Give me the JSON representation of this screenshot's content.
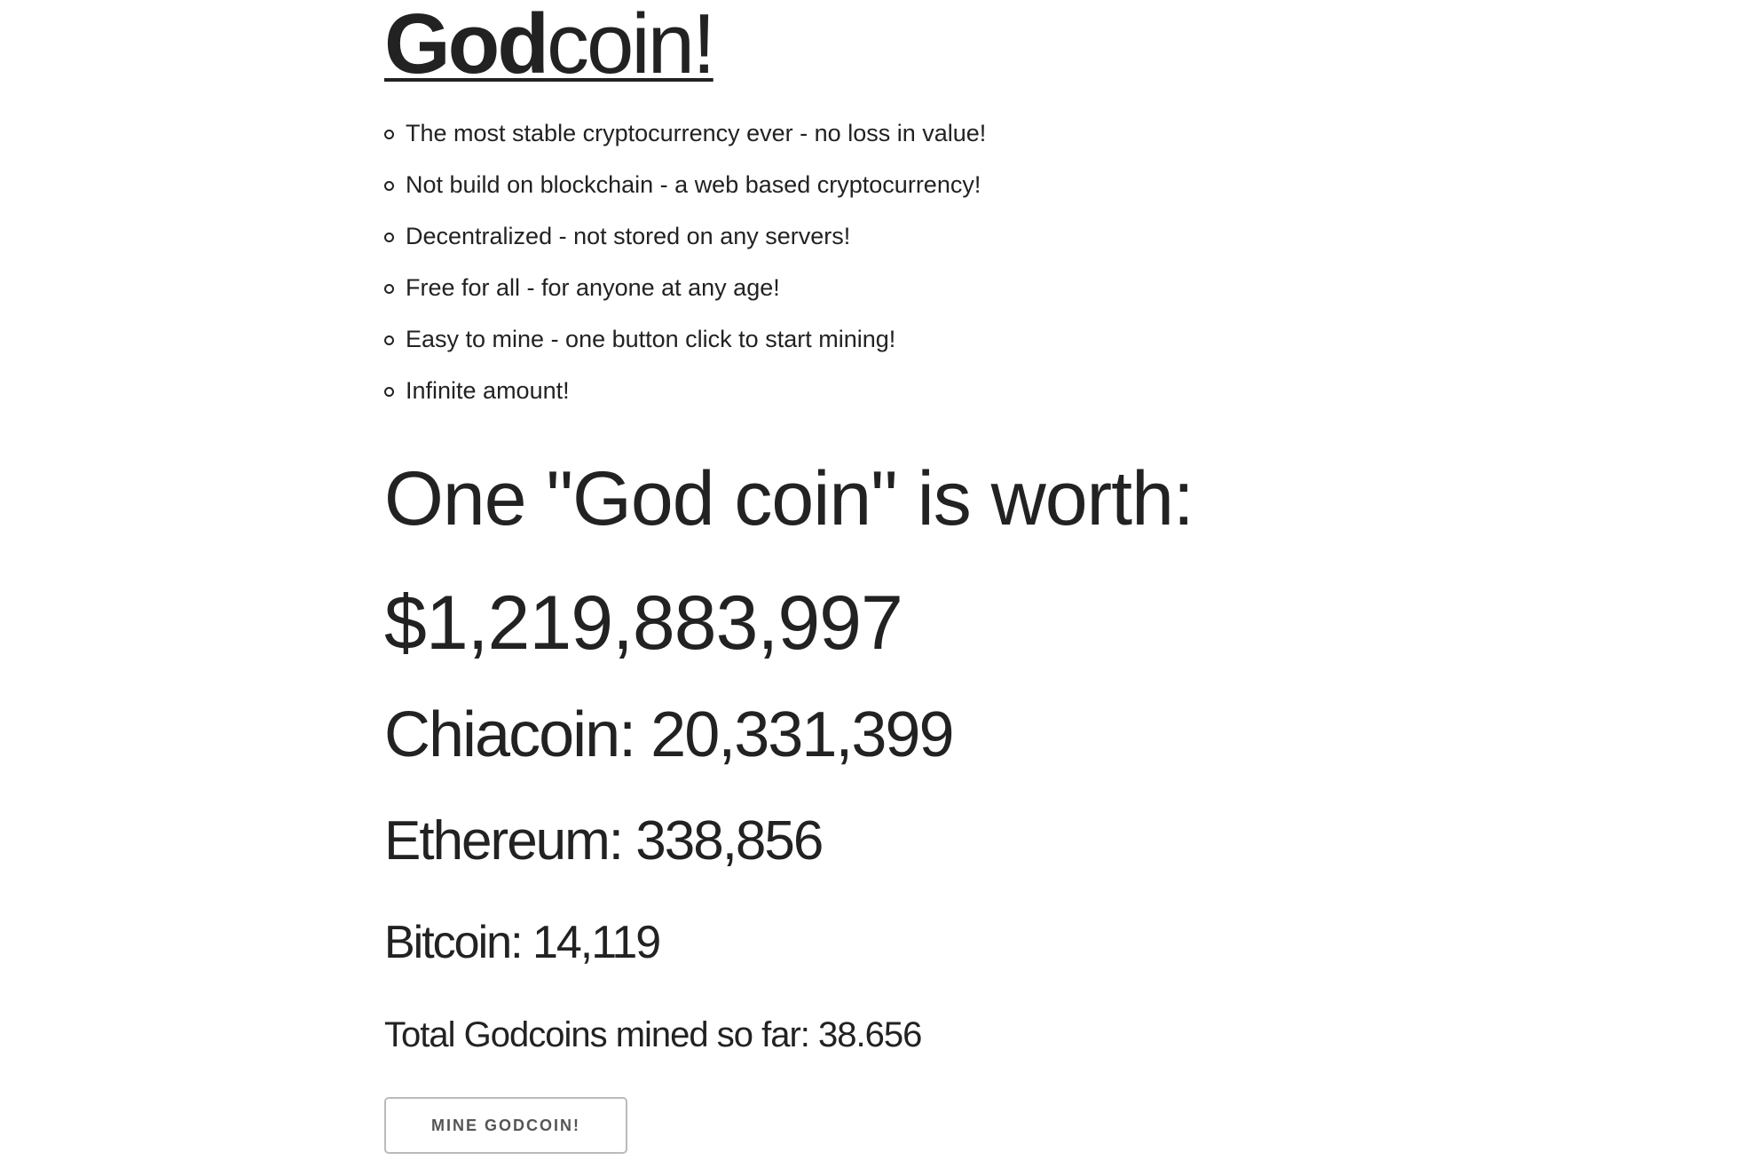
{
  "header": {
    "title_bold": "God",
    "title_rest": "coin!"
  },
  "features": [
    "The most stable cryptocurrency ever - no loss in value!",
    "Not build on blockchain - a web based cryptocurrency!",
    "Decentralized - not stored on any servers!",
    "Free for all - for anyone at any age!",
    "Easy to mine - one button click to start mining!",
    "Infinite amount!"
  ],
  "worth": {
    "heading": "One \"God coin\" is worth:",
    "usd": "$1,219,883,997"
  },
  "rates": {
    "chiacoin": "Chiacoin: 20,331,399",
    "ethereum": "Ethereum: 338,856",
    "bitcoin": "Bitcoin: 14,119"
  },
  "stats": {
    "total_mined": "Total Godcoins mined so far: 38.656"
  },
  "actions": {
    "mine_label": "MINE GODCOIN!"
  },
  "colors": {
    "text": "#222222",
    "background": "#ffffff",
    "button_border": "#bbbbbb"
  }
}
